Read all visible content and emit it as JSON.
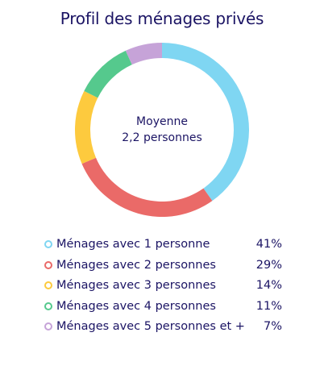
{
  "title": "Profil des ménages privés",
  "center": {
    "line1": "Moyenne",
    "line2": "2,2 personnes"
  },
  "legend": [
    {
      "label": "Ménages avec 1 personne",
      "value": "41%"
    },
    {
      "label": "Ménages avec 2 personnes",
      "value": "29%"
    },
    {
      "label": "Ménages avec 3 personnes",
      "value": "14%"
    },
    {
      "label": "Ménages avec 4 personnes",
      "value": "11%"
    },
    {
      "label": "Ménages avec 5 personnes et +",
      "value": "7%"
    }
  ],
  "chart_data": {
    "type": "pie",
    "title": "Profil des ménages privés",
    "categories": [
      "Ménages avec 1 personne",
      "Ménages avec 2 personnes",
      "Ménages avec 3 personnes",
      "Ménages avec 4 personnes",
      "Ménages avec 5 personnes et +"
    ],
    "values": [
      41,
      29,
      14,
      11,
      7
    ],
    "colors": [
      "#7fd6f2",
      "#ea6a68",
      "#fdca3e",
      "#55c98d",
      "#c6a3d8"
    ],
    "center_text": [
      "Moyenne",
      "2,2 personnes"
    ],
    "legend_position": "bottom"
  }
}
